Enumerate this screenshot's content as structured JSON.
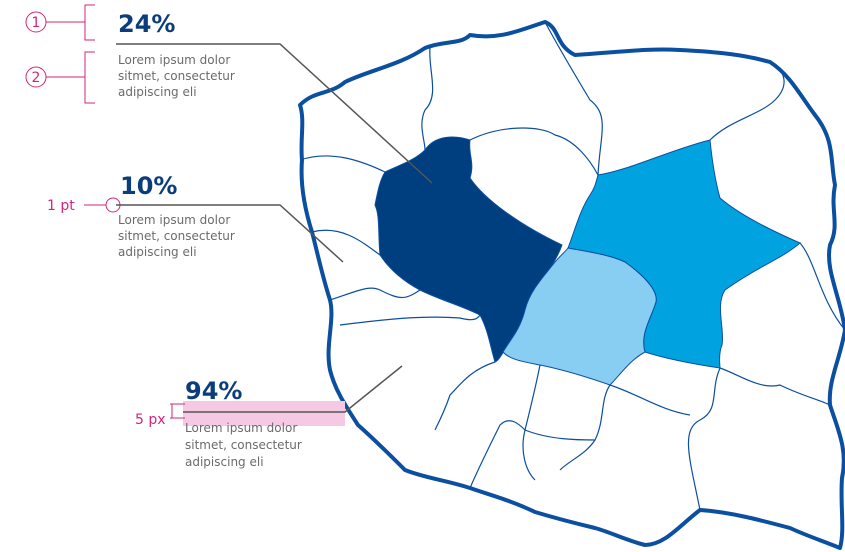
{
  "annotations": {
    "markers": [
      "1",
      "2"
    ],
    "line_weight": "1 pt",
    "spacing": "5 px"
  },
  "callouts": [
    {
      "value": "24%",
      "text": [
        "Lorem ipsum dolor",
        "sitmet, consectetur",
        "adipiscing eli"
      ]
    },
    {
      "value": "10%",
      "text": [
        "Lorem ipsum dolor",
        "sitmet, consectetur",
        "adipiscing eli"
      ]
    },
    {
      "value": "94%",
      "text": [
        "Lorem ipsum dolor",
        "sitmet, consectetur",
        "adipiscing eli"
      ]
    }
  ]
}
